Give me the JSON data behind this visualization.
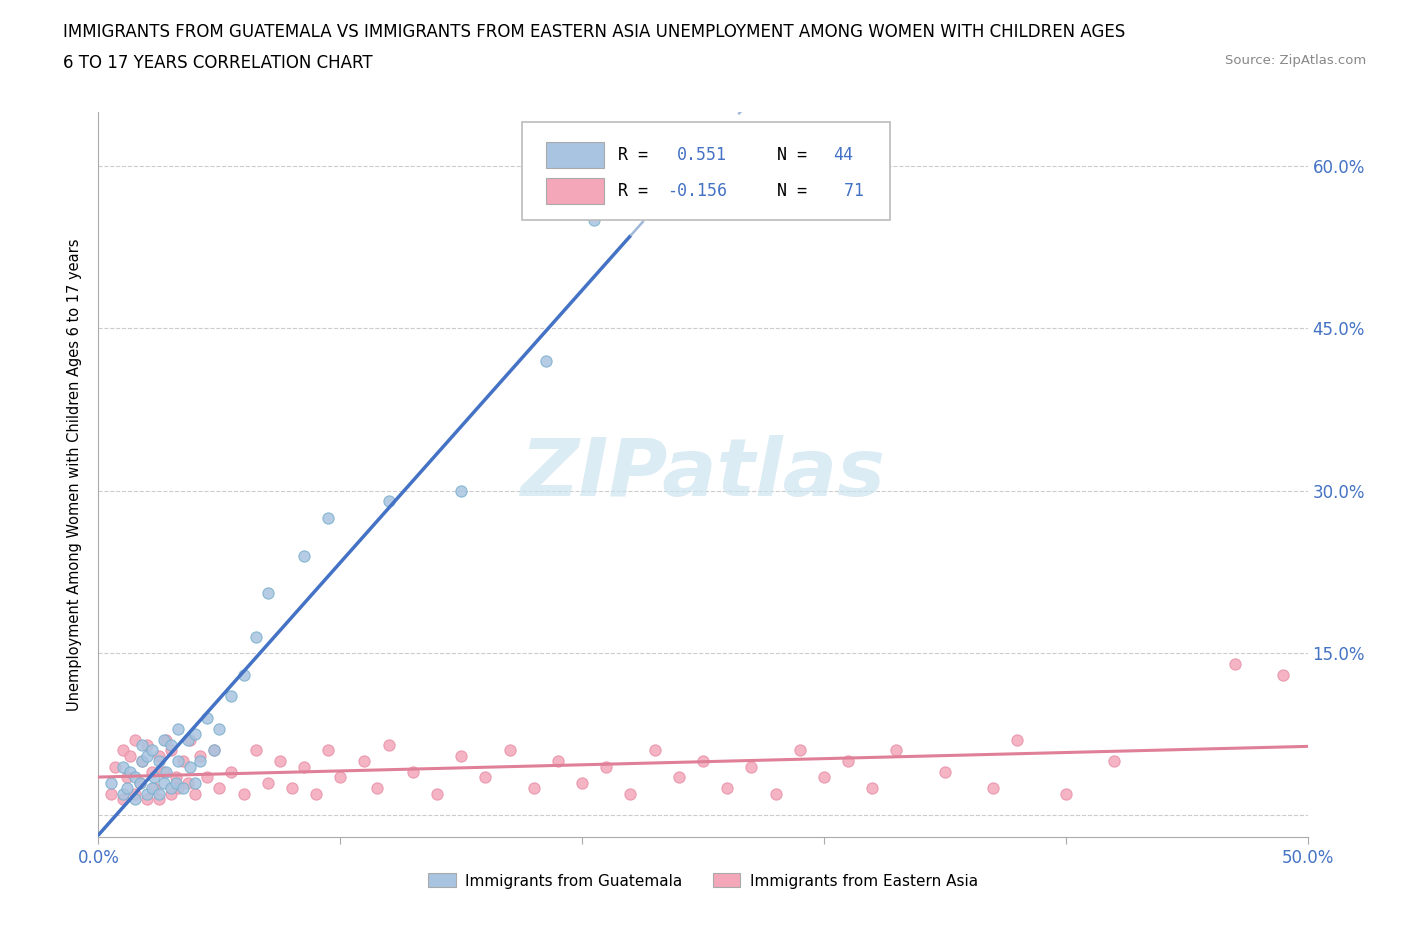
{
  "title_line1": "IMMIGRANTS FROM GUATEMALA VS IMMIGRANTS FROM EASTERN ASIA UNEMPLOYMENT AMONG WOMEN WITH CHILDREN AGES",
  "title_line2": "6 TO 17 YEARS CORRELATION CHART",
  "source": "Source: ZipAtlas.com",
  "ylabel": "Unemployment Among Women with Children Ages 6 to 17 years",
  "xlim": [
    0.0,
    0.5
  ],
  "ylim": [
    -0.02,
    0.65
  ],
  "guatemala_color": "#a8c4e0",
  "guatemala_edge_color": "#7aafcc",
  "eastern_asia_color": "#f4a7b9",
  "eastern_asia_edge_color": "#e890a8",
  "trendline_guatemala_color": "#4472c4",
  "trendline_eastern_asia_color": "#e08098",
  "watermark_color": "#cce4f0",
  "tick_label_color": "#4472c4",
  "legend_r_color": "#4472c4",
  "guatemala_x": [
    0.005,
    0.01,
    0.01,
    0.012,
    0.013,
    0.015,
    0.015,
    0.017,
    0.018,
    0.018,
    0.02,
    0.02,
    0.022,
    0.022,
    0.023,
    0.025,
    0.025,
    0.027,
    0.027,
    0.028,
    0.03,
    0.03,
    0.032,
    0.033,
    0.033,
    0.035,
    0.037,
    0.038,
    0.04,
    0.04,
    0.042,
    0.045,
    0.048,
    0.05,
    0.055,
    0.06,
    0.065,
    0.07,
    0.085,
    0.095,
    0.12,
    0.15,
    0.185,
    0.205
  ],
  "guatemala_y": [
    0.03,
    0.02,
    0.045,
    0.025,
    0.04,
    0.015,
    0.035,
    0.03,
    0.05,
    0.065,
    0.02,
    0.055,
    0.025,
    0.06,
    0.035,
    0.02,
    0.05,
    0.03,
    0.07,
    0.04,
    0.025,
    0.065,
    0.03,
    0.05,
    0.08,
    0.025,
    0.07,
    0.045,
    0.03,
    0.075,
    0.05,
    0.09,
    0.06,
    0.08,
    0.11,
    0.13,
    0.165,
    0.205,
    0.24,
    0.275,
    0.29,
    0.3,
    0.42,
    0.55
  ],
  "eastern_asia_x": [
    0.005,
    0.007,
    0.01,
    0.01,
    0.012,
    0.013,
    0.015,
    0.015,
    0.017,
    0.018,
    0.02,
    0.02,
    0.022,
    0.023,
    0.025,
    0.025,
    0.027,
    0.028,
    0.03,
    0.03,
    0.032,
    0.033,
    0.035,
    0.037,
    0.038,
    0.04,
    0.042,
    0.045,
    0.048,
    0.05,
    0.055,
    0.06,
    0.065,
    0.07,
    0.075,
    0.08,
    0.085,
    0.09,
    0.095,
    0.1,
    0.11,
    0.115,
    0.12,
    0.13,
    0.14,
    0.15,
    0.16,
    0.17,
    0.18,
    0.19,
    0.2,
    0.21,
    0.22,
    0.23,
    0.24,
    0.25,
    0.26,
    0.27,
    0.28,
    0.29,
    0.3,
    0.31,
    0.32,
    0.33,
    0.35,
    0.37,
    0.38,
    0.4,
    0.42,
    0.47,
    0.49
  ],
  "eastern_asia_y": [
    0.02,
    0.045,
    0.015,
    0.06,
    0.035,
    0.055,
    0.02,
    0.07,
    0.03,
    0.05,
    0.015,
    0.065,
    0.04,
    0.025,
    0.015,
    0.055,
    0.04,
    0.07,
    0.02,
    0.06,
    0.035,
    0.025,
    0.05,
    0.03,
    0.07,
    0.02,
    0.055,
    0.035,
    0.06,
    0.025,
    0.04,
    0.02,
    0.06,
    0.03,
    0.05,
    0.025,
    0.045,
    0.02,
    0.06,
    0.035,
    0.05,
    0.025,
    0.065,
    0.04,
    0.02,
    0.055,
    0.035,
    0.06,
    0.025,
    0.05,
    0.03,
    0.045,
    0.02,
    0.06,
    0.035,
    0.05,
    0.025,
    0.045,
    0.02,
    0.06,
    0.035,
    0.05,
    0.025,
    0.06,
    0.04,
    0.025,
    0.07,
    0.02,
    0.05,
    0.14,
    0.13
  ]
}
